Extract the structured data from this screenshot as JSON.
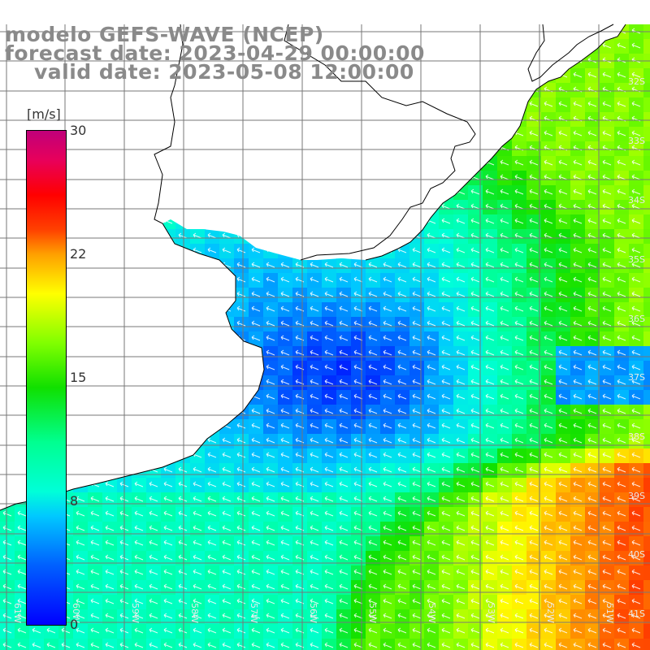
{
  "title": {
    "line1": "modelo GEFS-WAVE (NCEP)",
    "line2": "forecast date: 2023-04-29 00:00:00",
    "line3": "valid date: 2023-05-08 12:00:00"
  },
  "colorbar": {
    "unit": "[m/s]",
    "ticks": [
      "30",
      "22",
      "15",
      "8",
      "0"
    ],
    "tick_values": [
      30,
      22,
      15,
      8,
      0
    ],
    "range": [
      0,
      30
    ],
    "colors": [
      "#0000ff",
      "#0060ff",
      "#00c8ff",
      "#00ffd8",
      "#00ff90",
      "#10e000",
      "#80ff00",
      "#ffff00",
      "#ffa000",
      "#ff4000",
      "#ff0000",
      "#e8005a",
      "#c0007a"
    ]
  },
  "lat_labels": [
    "32S",
    "33S",
    "34S",
    "35S",
    "36S",
    "37S",
    "38S",
    "39S",
    "40S",
    "41S"
  ],
  "lon_labels": [
    "61W",
    "60W",
    "59W",
    "58W",
    "57W",
    "56W",
    "55W",
    "54W",
    "53W",
    "52W",
    "51W"
  ],
  "wind_direction": "arrows pointing west-northwest",
  "colors": {
    "land": "#ffffff",
    "coastline": "#000000",
    "grid": "#888888",
    "title": "#8a8a8a",
    "arrow": "#ffffff"
  }
}
